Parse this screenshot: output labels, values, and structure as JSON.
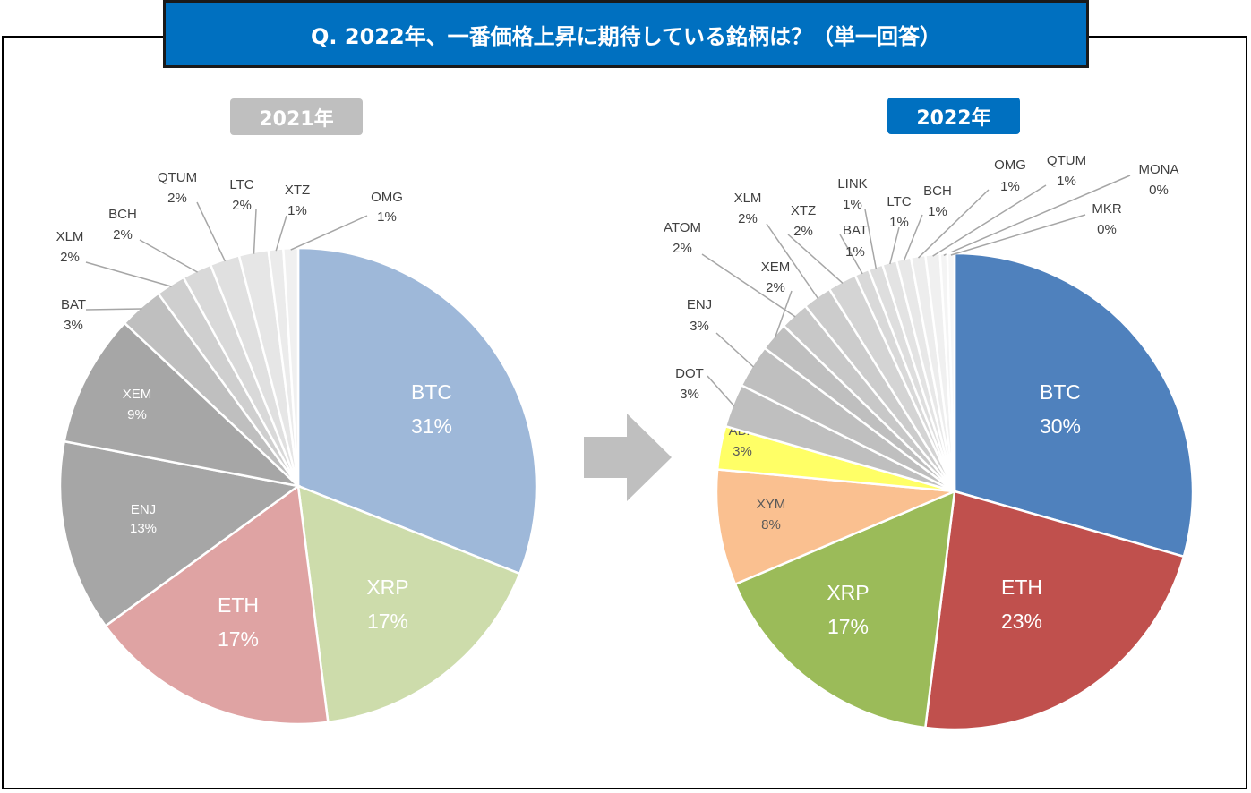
{
  "title": "Q. 2022年、一番価格上昇に期待している銘柄は？（単一回答）",
  "chart_data": [
    {
      "type": "pie",
      "title": "2021年",
      "slices": [
        {
          "label": "BTC",
          "value": 31,
          "pct": "31%",
          "color": "#9eb8d9"
        },
        {
          "label": "XRP",
          "value": 17,
          "pct": "17%",
          "color": "#cddcab"
        },
        {
          "label": "ETH",
          "value": 17,
          "pct": "17%",
          "color": "#dfa3a3"
        },
        {
          "label": "ENJ",
          "value": 13,
          "pct": "13%",
          "color": "#a6a6a6"
        },
        {
          "label": "XEM",
          "value": 9,
          "pct": "9%",
          "color": "#a6a6a6"
        },
        {
          "label": "BAT",
          "value": 3,
          "pct": "3%",
          "color": "#bfbfbf"
        },
        {
          "label": "XLM",
          "value": 2,
          "pct": "2%",
          "color": "#cfcfcf"
        },
        {
          "label": "BCH",
          "value": 2,
          "pct": "2%",
          "color": "#d9d9d9"
        },
        {
          "label": "QTUM",
          "value": 2,
          "pct": "2%",
          "color": "#e0e0e0"
        },
        {
          "label": "LTC",
          "value": 2,
          "pct": "2%",
          "color": "#e6e6e6"
        },
        {
          "label": "XTZ",
          "value": 1,
          "pct": "1%",
          "color": "#ebebeb"
        },
        {
          "label": "OMG",
          "value": 1,
          "pct": "1%",
          "color": "#f0f0f0"
        }
      ]
    },
    {
      "type": "pie",
      "title": "2022年",
      "slices": [
        {
          "label": "BTC",
          "value": 30,
          "pct": "30%",
          "color": "#4f81bd"
        },
        {
          "label": "ETH",
          "value": 23,
          "pct": "23%",
          "color": "#c0504d"
        },
        {
          "label": "XRP",
          "value": 17,
          "pct": "17%",
          "color": "#9bbb59"
        },
        {
          "label": "XYM",
          "value": 8,
          "pct": "8%",
          "color": "#fac090"
        },
        {
          "label": "ADA",
          "value": 3,
          "pct": "3%",
          "color": "#ffff66"
        },
        {
          "label": "DOT",
          "value": 3,
          "pct": "3%",
          "color": "#bfbfbf"
        },
        {
          "label": "ENJ",
          "value": 3,
          "pct": "3%",
          "color": "#bfbfbf"
        },
        {
          "label": "XEM",
          "value": 2,
          "pct": "2%",
          "color": "#bfbfbf"
        },
        {
          "label": "ATOM",
          "value": 2,
          "pct": "2%",
          "color": "#c8c8c8"
        },
        {
          "label": "XLM",
          "value": 2,
          "pct": "2%",
          "color": "#cccccc"
        },
        {
          "label": "XTZ",
          "value": 2,
          "pct": "2%",
          "color": "#d4d4d4"
        },
        {
          "label": "BAT",
          "value": 1,
          "pct": "1%",
          "color": "#d9d9d9"
        },
        {
          "label": "LINK",
          "value": 1,
          "pct": "1%",
          "color": "#dedede"
        },
        {
          "label": "LTC",
          "value": 1,
          "pct": "1%",
          "color": "#e3e3e3"
        },
        {
          "label": "BCH",
          "value": 1,
          "pct": "1%",
          "color": "#e8e8e8"
        },
        {
          "label": "OMG",
          "value": 1,
          "pct": "1%",
          "color": "#ededed"
        },
        {
          "label": "QTUM",
          "value": 1,
          "pct": "1%",
          "color": "#f0f0f0"
        },
        {
          "label": "MONA",
          "value": 0.5,
          "pct": "0%",
          "color": "#f4f4f4"
        },
        {
          "label": "MKR",
          "value": 0.5,
          "pct": "0%",
          "color": "#f7f7f7"
        }
      ]
    }
  ]
}
